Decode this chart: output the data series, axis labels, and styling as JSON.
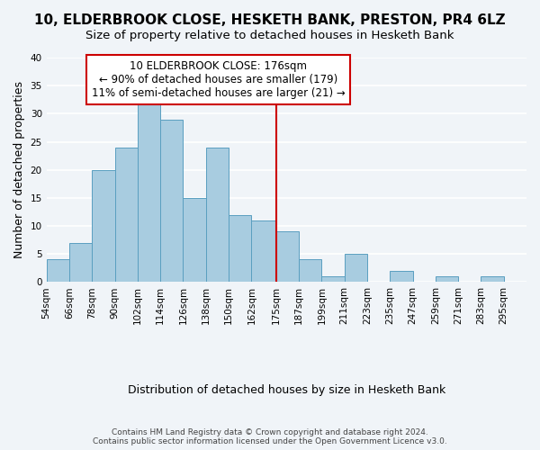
{
  "title": "10, ELDERBROOK CLOSE, HESKETH BANK, PRESTON, PR4 6LZ",
  "subtitle": "Size of property relative to detached houses in Hesketh Bank",
  "xlabel": "Distribution of detached houses by size in Hesketh Bank",
  "ylabel": "Number of detached properties",
  "bin_labels": [
    "54sqm",
    "66sqm",
    "78sqm",
    "90sqm",
    "102sqm",
    "114sqm",
    "126sqm",
    "138sqm",
    "150sqm",
    "162sqm",
    "175sqm",
    "187sqm",
    "199sqm",
    "211sqm",
    "223sqm",
    "235sqm",
    "247sqm",
    "259sqm",
    "271sqm",
    "283sqm",
    "295sqm"
  ],
  "bar_values": [
    4,
    7,
    20,
    24,
    32,
    29,
    15,
    24,
    12,
    11,
    9,
    4,
    1,
    5,
    0,
    2,
    0,
    1,
    0,
    1
  ],
  "bar_color": "#a8cce0",
  "bar_edge_color": "#5a9fc0",
  "vline_x": 175,
  "vline_color": "#cc0000",
  "ylim": [
    0,
    40
  ],
  "yticks": [
    0,
    5,
    10,
    15,
    20,
    25,
    30,
    35,
    40
  ],
  "annotation_box_text": "10 ELDERBROOK CLOSE: 176sqm\n← 90% of detached houses are smaller (179)\n11% of semi-detached houses are larger (21) →",
  "annotation_box_color": "#cc0000",
  "footer_line1": "Contains HM Land Registry data © Crown copyright and database right 2024.",
  "footer_line2": "Contains public sector information licensed under the Open Government Licence v3.0.",
  "background_color": "#f0f4f8",
  "grid_color": "#ffffff",
  "title_fontsize": 11,
  "subtitle_fontsize": 9.5,
  "xlabel_fontsize": 9,
  "ylabel_fontsize": 9,
  "tick_fontsize": 7.5,
  "annotation_fontsize": 8.5,
  "footer_fontsize": 6.5,
  "bin_edges": [
    54,
    66,
    78,
    90,
    102,
    114,
    126,
    138,
    150,
    162,
    175,
    187,
    199,
    211,
    223,
    235,
    247,
    259,
    271,
    283,
    295
  ]
}
